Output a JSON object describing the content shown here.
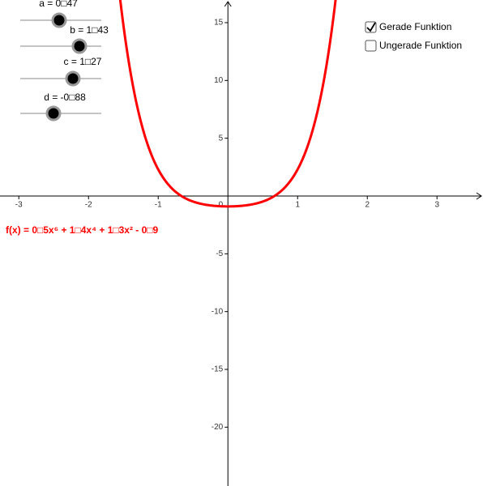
{
  "sliders": [
    {
      "label": "a = 0□47"
    },
    {
      "label": "b = 1□43"
    },
    {
      "label": "c = 1□27"
    },
    {
      "label": "d = -0□88"
    }
  ],
  "checkboxes": [
    {
      "label": "Gerade Funktion",
      "checked": true
    },
    {
      "label": "Ungerade Funktion",
      "checked": false
    }
  ],
  "graph": {
    "xlim": [
      -3.27,
      3.66
    ],
    "ylim": [
      -25.09,
      16.96
    ],
    "xticks": [
      -3,
      -2,
      -1,
      1,
      2,
      3
    ],
    "yticks": [
      15,
      10,
      5,
      -5,
      -10,
      -15,
      -20
    ],
    "origin_label": "0",
    "function": {
      "label": "f(x) = 0□5x⁶ + 1□4x⁴ + 1□3x² - 0□9",
      "color": "#ff0000",
      "terms": [
        {
          "power": 6,
          "coef": 0.5
        },
        {
          "power": 4,
          "coef": 1.4
        },
        {
          "power": 2,
          "coef": 1.3
        },
        {
          "power": 0,
          "coef": -0.9
        }
      ]
    }
  }
}
